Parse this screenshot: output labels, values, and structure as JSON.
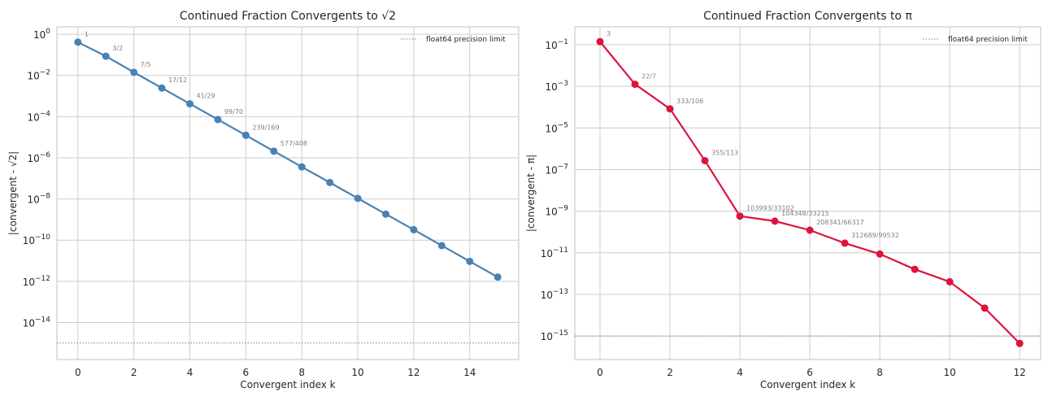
{
  "chart_data": [
    {
      "type": "line",
      "title": "Continued Fraction Convergents to √2",
      "xlabel": "Convergent index k",
      "ylabel": "|convergent - √2|",
      "yscale": "log",
      "xlim": [
        -0.75,
        15.75
      ],
      "ylim_log10": [
        0.36,
        -15.8
      ],
      "grid": true,
      "legend_placement": "top-right",
      "x_ticks": [
        0,
        2,
        4,
        6,
        8,
        10,
        12,
        14
      ],
      "y_ticks_exp": [
        0,
        -2,
        -4,
        -6,
        -8,
        -10,
        -12,
        -14
      ],
      "color": "#4682b4",
      "x": [
        0,
        1,
        2,
        3,
        4,
        5,
        6,
        7,
        8,
        9,
        10,
        11,
        12,
        13,
        14,
        15
      ],
      "y": [
        0.4142,
        0.0858,
        0.0142,
        0.00245,
        0.00042,
        7.2e-05,
        1.24e-05,
        2.1e-06,
        3.6e-07,
        6.3e-08,
        1.07e-08,
        1.84e-09,
        3.2e-10,
        5.4e-11,
        9.3e-12,
        1.6e-12
      ],
      "annotations": [
        "1",
        "3/2",
        "7/5",
        "17/12",
        "41/29",
        "99/70",
        "239/169",
        "577/408"
      ],
      "reference_line": {
        "label": "float64 precision limit",
        "value": 1e-15,
        "color": "#808080"
      }
    },
    {
      "type": "line",
      "title": "Continued Fraction Convergents to π",
      "xlabel": "Convergent index k",
      "ylabel": "|convergent - π|",
      "yscale": "log",
      "xlim": [
        -0.72,
        12.6
      ],
      "ylim_log10": [
        -0.14,
        -16.13
      ],
      "grid": true,
      "legend_placement": "top-right",
      "x_ticks": [
        0,
        2,
        4,
        6,
        8,
        10,
        12
      ],
      "y_ticks_exp": [
        -1,
        -3,
        -5,
        -7,
        -9,
        -11,
        -13,
        -15
      ],
      "color": "#dc143c",
      "x": [
        0,
        1,
        2,
        3,
        4,
        5,
        6,
        7,
        8,
        9,
        10,
        11,
        12
      ],
      "y": [
        0.1416,
        0.00126,
        8.3e-05,
        2.67e-07,
        5.78e-10,
        3.32e-10,
        1.22e-10,
        2.91e-11,
        8.72e-12,
        1.61e-12,
        4.04e-13,
        2.2e-14,
        4.4e-16
      ],
      "annotations": [
        "3",
        "22/7",
        "333/106",
        "355/113",
        "103993/33102",
        "104348/33215",
        "208341/66317",
        "312689/99532"
      ],
      "reference_line": {
        "label": "float64 precision limit",
        "value": 1e-15,
        "color": "#808080"
      }
    }
  ]
}
